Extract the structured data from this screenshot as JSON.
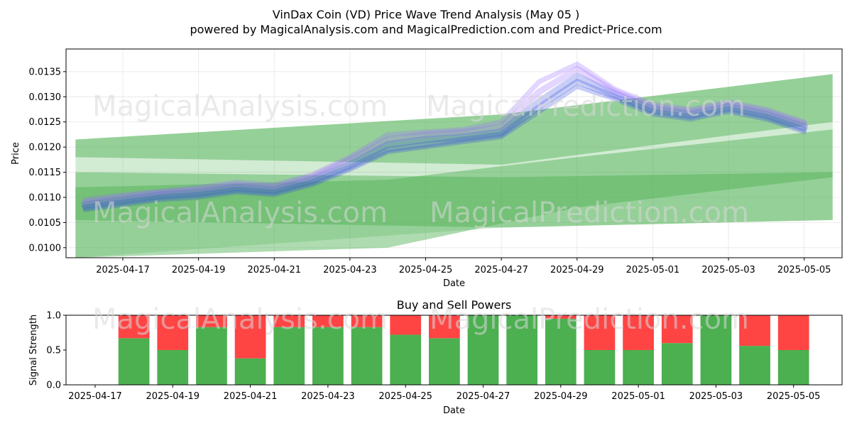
{
  "title": "VinDax Coin (VD) Price Wave Trend Analysis (May 05 )",
  "subtitle": "powered by MagicalAnalysis.com and MagicalPrediction.com and Predict-Price.com",
  "watermarks": [
    "MagicalAnalysis.com",
    "MagicalPrediction.com"
  ],
  "colors": {
    "band": "#4caf50",
    "wave_blue": "#3b4fe0",
    "wave_violet": "#9b6bff",
    "buy": "#4caf50",
    "sell": "#ff4444"
  },
  "chart_data": [
    {
      "type": "line",
      "name": "price-wave-chart",
      "xlabel": "Date",
      "ylabel": "Price",
      "x_ticks": [
        "2025-04-17",
        "2025-04-19",
        "2025-04-21",
        "2025-04-23",
        "2025-04-25",
        "2025-04-27",
        "2025-04-29",
        "2025-05-01",
        "2025-05-03",
        "2025-05-05"
      ],
      "y_ticks": [
        "0.0100",
        "0.0105",
        "0.0110",
        "0.0115",
        "0.0120",
        "0.0125",
        "0.0130",
        "0.0135"
      ],
      "ylim": [
        0.0098,
        0.01395
      ],
      "xlim": [
        "2025-04-15T12:00",
        "2025-05-06T00:00"
      ],
      "grid": true,
      "x": [
        "2025-04-16",
        "2025-04-17",
        "2025-04-18",
        "2025-04-19",
        "2025-04-20",
        "2025-04-21",
        "2025-04-22",
        "2025-04-23",
        "2025-04-24",
        "2025-04-25",
        "2025-04-26",
        "2025-04-27",
        "2025-04-28",
        "2025-04-29",
        "2025-04-30",
        "2025-05-01",
        "2025-05-02",
        "2025-05-03",
        "2025-05-04",
        "2025-05-05"
      ],
      "bands": [
        {
          "name": "outer",
          "x": [
            "2025-04-15T18:00",
            "2025-04-27",
            "2025-05-05T18:00"
          ],
          "upper": [
            0.01215,
            0.01265,
            0.01345
          ],
          "lower": [
            0.0098,
            0.0104,
            0.01055
          ]
        },
        {
          "name": "upper",
          "x": [
            "2025-04-15T18:00",
            "2025-04-27",
            "2025-05-05T18:00"
          ],
          "upper": [
            0.01215,
            0.01265,
            0.01345
          ],
          "lower": [
            0.0118,
            0.01165,
            0.0125
          ]
        },
        {
          "name": "middle",
          "x": [
            "2025-04-15T18:00",
            "2025-04-27",
            "2025-05-05T18:00"
          ],
          "upper": [
            0.0115,
            0.0114,
            0.0115
          ],
          "lower": [
            0.01055,
            0.0104,
            0.01055
          ]
        },
        {
          "name": "lower",
          "x": [
            "2025-04-15T18:00",
            "2025-04-24",
            "2025-04-29",
            "2025-05-05T18:00"
          ],
          "upper": [
            0.0112,
            0.01135,
            0.0118,
            0.01235
          ],
          "lower": [
            0.0098,
            0.01,
            0.0108,
            0.0114
          ]
        }
      ],
      "series": [
        {
          "values": [
            0.01085,
            0.01095,
            0.01105,
            0.0111,
            0.0112,
            0.01115,
            0.01135,
            0.01165,
            0.01205,
            0.01215,
            0.0122,
            0.0123,
            0.0129,
            0.0134,
            0.01305,
            0.01275,
            0.01265,
            0.0128,
            0.01265,
            0.0124
          ]
        },
        {
          "values": [
            0.0109,
            0.011,
            0.0111,
            0.01115,
            0.01125,
            0.0112,
            0.0114,
            0.01175,
            0.01215,
            0.01225,
            0.0123,
            0.0124,
            0.0131,
            0.01355,
            0.0131,
            0.0128,
            0.0127,
            0.01285,
            0.0127,
            0.01245
          ]
        },
        {
          "values": [
            0.0108,
            0.0109,
            0.011,
            0.01105,
            0.01115,
            0.0111,
            0.0113,
            0.0116,
            0.01195,
            0.01205,
            0.01215,
            0.01225,
            0.0128,
            0.0133,
            0.013,
            0.0127,
            0.0126,
            0.01275,
            0.0126,
            0.01235
          ]
        },
        {
          "values": [
            0.01095,
            0.01105,
            0.01112,
            0.0112,
            0.0113,
            0.01125,
            0.01145,
            0.0118,
            0.01225,
            0.0123,
            0.01235,
            0.0125,
            0.0133,
            0.01365,
            0.01315,
            0.01285,
            0.01275,
            0.0129,
            0.01275,
            0.0125
          ]
        },
        {
          "values": [
            0.01075,
            0.01085,
            0.01095,
            0.011,
            0.0111,
            0.01105,
            0.01125,
            0.01155,
            0.0119,
            0.012,
            0.0121,
            0.0122,
            0.0127,
            0.0132,
            0.01295,
            0.01265,
            0.01255,
            0.0127,
            0.01255,
            0.0123
          ]
        }
      ]
    },
    {
      "type": "bar",
      "name": "buy-sell-chart",
      "title": "Buy and Sell Powers",
      "xlabel": "Date",
      "ylabel": "Signal Strength",
      "ylim": [
        0,
        1
      ],
      "y_ticks": [
        "0.0",
        "0.5",
        "1.0"
      ],
      "x_ticks": [
        "2025-04-17",
        "2025-04-19",
        "2025-04-21",
        "2025-04-23",
        "2025-04-25",
        "2025-04-27",
        "2025-04-29",
        "2025-05-01",
        "2025-05-03",
        "2025-05-05"
      ],
      "xlim": [
        "2025-04-16T06:00",
        "2025-05-06T06:00"
      ],
      "categories": [
        "2025-04-18",
        "2025-04-19",
        "2025-04-20",
        "2025-04-21",
        "2025-04-22",
        "2025-04-23",
        "2025-04-24",
        "2025-04-25",
        "2025-04-26",
        "2025-04-27",
        "2025-04-28",
        "2025-04-29",
        "2025-04-30",
        "2025-05-01",
        "2025-05-02",
        "2025-05-03",
        "2025-05-04",
        "2025-05-05"
      ],
      "buy": [
        0.67,
        0.5,
        0.83,
        0.38,
        0.83,
        0.83,
        0.83,
        0.72,
        0.67,
        1.0,
        1.0,
        0.95,
        0.5,
        0.5,
        0.6,
        1.0,
        0.56,
        0.5
      ]
    }
  ]
}
